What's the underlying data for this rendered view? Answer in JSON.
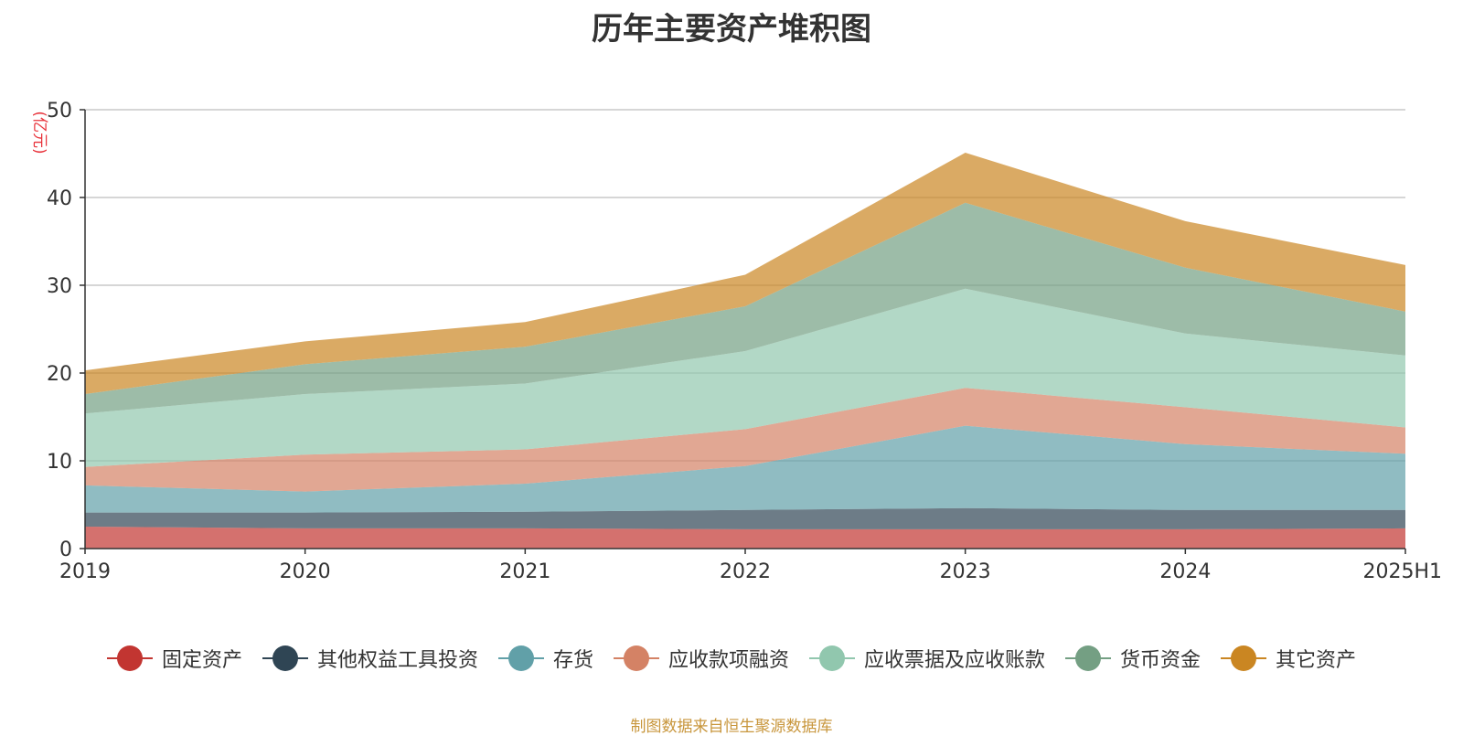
{
  "chart_data": {
    "type": "area",
    "stacked": true,
    "title": "历年主要资产堆积图",
    "ylabel": "(亿元)",
    "xlabel": "",
    "categories": [
      "2019",
      "2020",
      "2021",
      "2022",
      "2023",
      "2024",
      "2025H1"
    ],
    "ylim": [
      0,
      50
    ],
    "yticks": [
      0,
      10,
      20,
      30,
      40,
      50
    ],
    "grid": true,
    "legend_position": "bottom",
    "series": [
      {
        "name": "固定资产",
        "color": "#c23531",
        "values": [
          2.5,
          2.3,
          2.3,
          2.2,
          2.2,
          2.2,
          2.3
        ]
      },
      {
        "name": "其他权益工具投资",
        "color": "#2f4554",
        "values": [
          1.6,
          1.8,
          1.9,
          2.2,
          2.4,
          2.2,
          2.1
        ]
      },
      {
        "name": "存货",
        "color": "#61a0a8",
        "values": [
          3.1,
          2.4,
          3.2,
          5.0,
          9.4,
          7.5,
          6.4
        ]
      },
      {
        "name": "应收款项融资",
        "color": "#d48265",
        "values": [
          2.1,
          4.2,
          3.9,
          4.2,
          4.3,
          4.2,
          3.0
        ]
      },
      {
        "name": "应收票据及应收账款",
        "color": "#91c7ae",
        "values": [
          6.1,
          6.9,
          7.5,
          8.9,
          11.3,
          8.4,
          8.2
        ]
      },
      {
        "name": "货币资金",
        "color": "#749f83",
        "values": [
          2.2,
          3.4,
          4.2,
          5.1,
          9.8,
          7.5,
          5.0
        ]
      },
      {
        "name": "其它资产",
        "color": "#ca8622",
        "values": [
          2.7,
          2.6,
          2.8,
          3.6,
          5.7,
          5.3,
          5.3
        ]
      }
    ]
  },
  "footer": {
    "source": "制图数据来自恒生聚源数据库"
  }
}
